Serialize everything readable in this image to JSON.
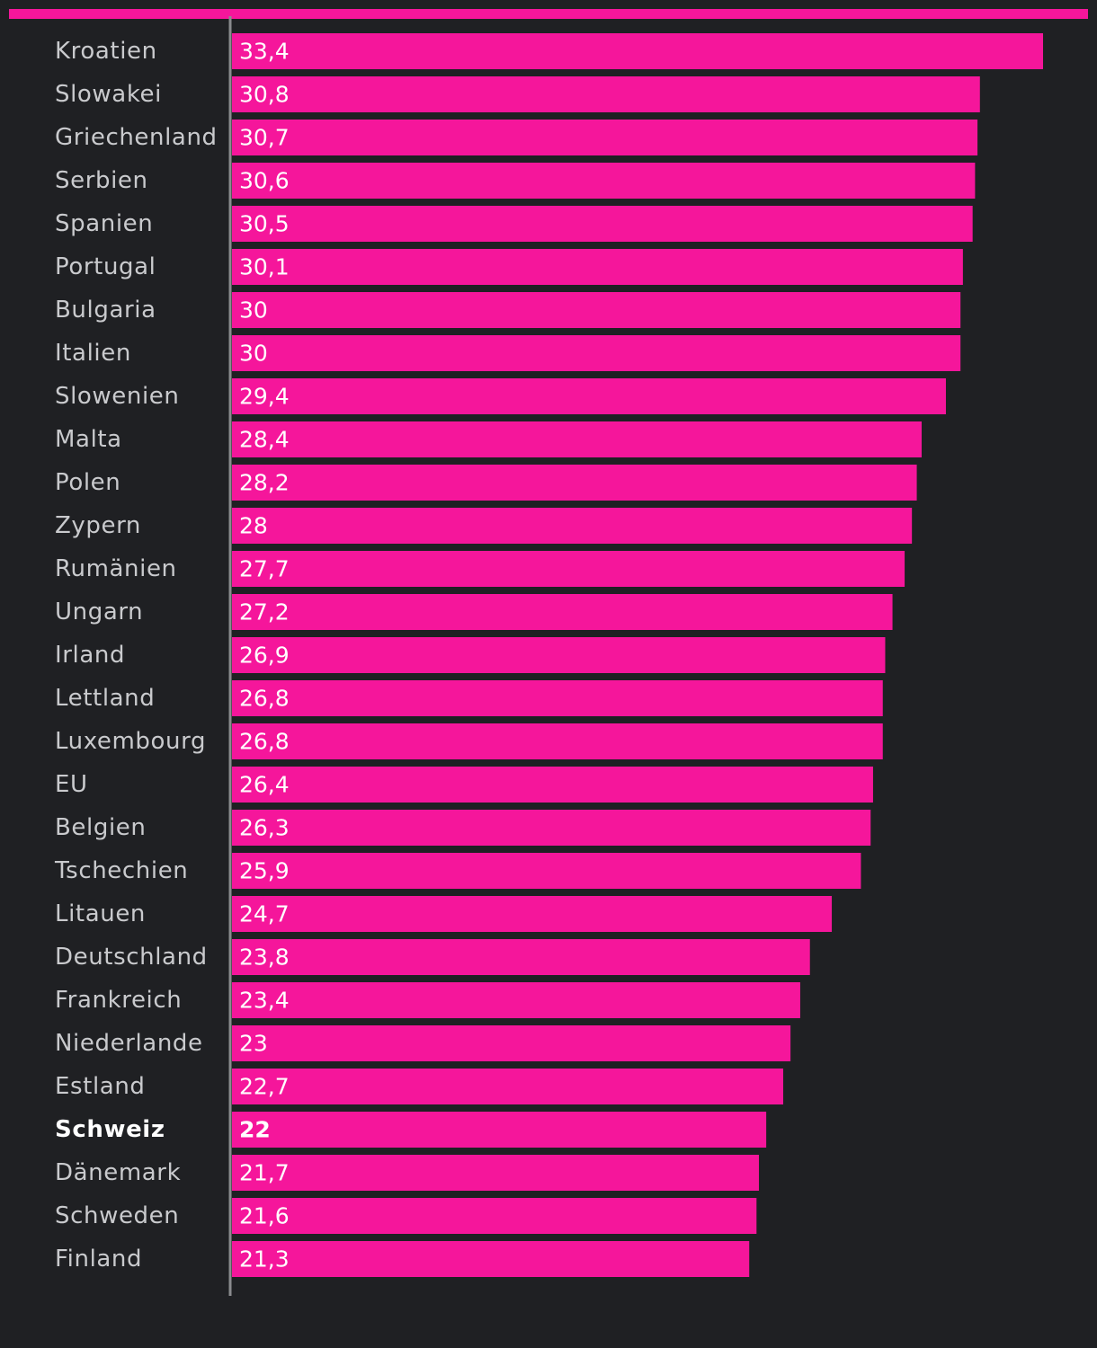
{
  "colors": {
    "background": "#1f2023",
    "bar": "#f5169b",
    "accent_bar": "#f5169b",
    "axis": "#8a8b8e",
    "label": "#c9cacd",
    "highlight_label": "#ffffff",
    "value_label": "#ffffff"
  },
  "chart_data": {
    "type": "bar",
    "orientation": "horizontal",
    "title": "",
    "xlabel": "",
    "ylabel": "",
    "xlim": [
      0,
      35.5
    ],
    "grid": false,
    "legend": "none",
    "highlight": "Schweiz",
    "categories": [
      "Kroatien",
      "Slowakei",
      "Griechenland",
      "Serbien",
      "Spanien",
      "Portugal",
      "Bulgaria",
      "Italien",
      "Slowenien",
      "Malta",
      "Polen",
      "Zypern",
      "Rumänien",
      "Ungarn",
      "Irland",
      "Lettland",
      "Luxembourg",
      "EU",
      "Belgien",
      "Tschechien",
      "Litauen",
      "Deutschland",
      "Frankreich",
      "Niederlande",
      "Estland",
      "Schweiz",
      "Dänemark",
      "Schweden",
      "Finland"
    ],
    "values": [
      33.4,
      30.8,
      30.7,
      30.6,
      30.5,
      30.1,
      30,
      30,
      29.4,
      28.4,
      28.2,
      28,
      27.7,
      27.2,
      26.9,
      26.8,
      26.8,
      26.4,
      26.3,
      25.9,
      24.7,
      23.8,
      23.4,
      23,
      22.7,
      22,
      21.7,
      21.6,
      21.3
    ],
    "value_labels": [
      "33,4",
      "30,8",
      "30,7",
      "30,6",
      "30,5",
      "30,1",
      "30",
      "30",
      "29,4",
      "28,4",
      "28,2",
      "28",
      "27,7",
      "27,2",
      "26,9",
      "26,8",
      "26,8",
      "26,4",
      "26,3",
      "25,9",
      "24,7",
      "23,8",
      "23,4",
      "23",
      "22,7",
      "22",
      "21,7",
      "21,6",
      "21,3"
    ]
  }
}
